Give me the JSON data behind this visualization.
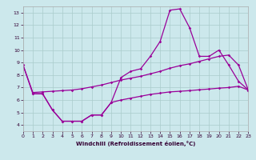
{
  "xlabel": "Windchill (Refroidissement éolien,°C)",
  "bg_color": "#cce8ec",
  "line_color": "#990099",
  "grid_color": "#aacccc",
  "xlim": [
    0,
    23
  ],
  "ylim": [
    3.5,
    13.5
  ],
  "xticks": [
    0,
    1,
    2,
    3,
    4,
    5,
    6,
    7,
    8,
    9,
    10,
    11,
    12,
    13,
    14,
    15,
    16,
    17,
    18,
    19,
    20,
    21,
    22,
    23
  ],
  "yticks": [
    4,
    5,
    6,
    7,
    8,
    9,
    10,
    11,
    12,
    13
  ],
  "line1_x": [
    0,
    1,
    2,
    3,
    4,
    5,
    6,
    7,
    8,
    9,
    10,
    11,
    12,
    13,
    14,
    15,
    16,
    17,
    18,
    19,
    20,
    21,
    22,
    23
  ],
  "line1_y": [
    8.8,
    6.5,
    6.5,
    5.2,
    4.3,
    4.3,
    4.3,
    4.8,
    4.8,
    5.8,
    7.8,
    8.3,
    8.5,
    9.5,
    10.7,
    13.2,
    13.3,
    11.8,
    9.5,
    9.5,
    10.0,
    8.8,
    7.5,
    6.8
  ],
  "line2_x": [
    0,
    1,
    2,
    3,
    4,
    5,
    6,
    7,
    8,
    9,
    10,
    11,
    12,
    13,
    14,
    15,
    16,
    17,
    18,
    19,
    20,
    21,
    22,
    23
  ],
  "line2_y": [
    8.8,
    6.6,
    6.65,
    6.7,
    6.75,
    6.8,
    6.9,
    7.05,
    7.2,
    7.4,
    7.6,
    7.75,
    7.9,
    8.1,
    8.3,
    8.55,
    8.75,
    8.9,
    9.1,
    9.3,
    9.5,
    9.6,
    8.8,
    6.8
  ],
  "line3_x": [
    1,
    2,
    3,
    4,
    5,
    6,
    7,
    8,
    9,
    10,
    11,
    12,
    13,
    14,
    15,
    16,
    17,
    18,
    19,
    20,
    21,
    22,
    23
  ],
  "line3_y": [
    6.5,
    6.5,
    5.2,
    4.3,
    4.3,
    4.3,
    4.8,
    4.8,
    5.8,
    6.0,
    6.15,
    6.3,
    6.45,
    6.55,
    6.65,
    6.7,
    6.75,
    6.82,
    6.88,
    6.95,
    7.0,
    7.1,
    6.8
  ]
}
